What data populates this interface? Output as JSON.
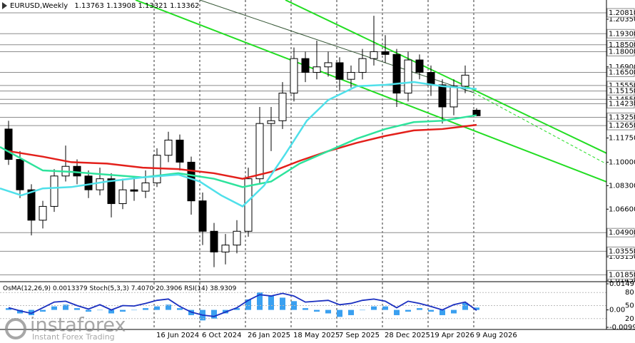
{
  "chart_data": {
    "type": "candlestick",
    "title": "EURUSD,Weekly",
    "x": [
      3,
      7,
      11,
      15,
      19,
      23,
      27,
      31,
      35,
      39,
      43,
      47,
      51,
      55,
      59,
      63,
      67,
      71,
      75,
      79,
      83,
      87,
      91,
      95,
      99,
      103,
      107,
      111,
      115,
      119,
      123,
      127,
      131,
      135,
      139,
      143,
      147,
      151,
      155,
      159,
      163,
      167
    ],
    "open": [
      1.124,
      1.102,
      1.08,
      1.058,
      1.068,
      1.09,
      1.097,
      1.09,
      1.08,
      1.088,
      1.07,
      1.08,
      1.079,
      1.085,
      1.105,
      1.116,
      1.1,
      1.072,
      1.05,
      1.035,
      1.04,
      1.05,
      1.088,
      1.128,
      1.13,
      1.15,
      1.175,
      1.165,
      1.169,
      1.172,
      1.16,
      1.165,
      1.175,
      1.18,
      1.178,
      1.15,
      1.174,
      1.165,
      1.156,
      1.14,
      1.155,
      1.13763
    ],
    "high": [
      1.13,
      1.108,
      1.084,
      1.072,
      1.095,
      1.112,
      1.102,
      1.094,
      1.096,
      1.092,
      1.088,
      1.09,
      1.094,
      1.11,
      1.122,
      1.12,
      1.104,
      1.078,
      1.056,
      1.048,
      1.058,
      1.096,
      1.14,
      1.14,
      1.158,
      1.183,
      1.18,
      1.188,
      1.18,
      1.176,
      1.17,
      1.182,
      1.206,
      1.192,
      1.182,
      1.18,
      1.178,
      1.17,
      1.16,
      1.16,
      1.17,
      1.13908
    ],
    "low": [
      1.098,
      1.074,
      1.047,
      1.052,
      1.064,
      1.086,
      1.084,
      1.074,
      1.076,
      1.06,
      1.066,
      1.072,
      1.074,
      1.082,
      1.1,
      1.094,
      1.062,
      1.04,
      1.024,
      1.026,
      1.034,
      1.046,
      1.084,
      1.108,
      1.124,
      1.144,
      1.158,
      1.16,
      1.162,
      1.152,
      1.154,
      1.16,
      1.17,
      1.172,
      1.14,
      1.144,
      1.16,
      1.148,
      1.128,
      1.134,
      1.15,
      1.13321
    ],
    "close": [
      1.102,
      1.08,
      1.058,
      1.068,
      1.09,
      1.097,
      1.09,
      1.08,
      1.088,
      1.07,
      1.08,
      1.079,
      1.085,
      1.105,
      1.116,
      1.1,
      1.072,
      1.05,
      1.035,
      1.04,
      1.05,
      1.088,
      1.128,
      1.13,
      1.15,
      1.175,
      1.165,
      1.169,
      1.172,
      1.16,
      1.165,
      1.175,
      1.18,
      1.178,
      1.15,
      1.174,
      1.165,
      1.156,
      1.14,
      1.155,
      1.163,
      1.13362
    ],
    "up_color": "#ffffff",
    "down_color": "#000000",
    "xlim": [
      0,
      212.5
    ],
    "xticks": [
      {
        "value": 54,
        "label": "16 Jun 2024"
      },
      {
        "value": 70,
        "label": "6 Oct 2024"
      },
      {
        "value": 86,
        "label": "26 Jan 2025"
      },
      {
        "value": 102,
        "label": "18 May 2025"
      },
      {
        "value": 118,
        "label": "7 Sep 2025"
      },
      {
        "value": 134,
        "label": "28 Dec 2025"
      },
      {
        "value": 150,
        "label": "19 Apr 2026"
      },
      {
        "value": 166,
        "label": "9 Aug 2026"
      }
    ],
    "ylim": [
      1.0135,
      1.2174
    ],
    "yticks": [
      {
        "value": 1.2035,
        "label": "1.20350"
      },
      {
        "value": 1.169,
        "label": "1.16900"
      },
      {
        "value": 1.1175,
        "label": "1.11750"
      },
      {
        "value": 1.1,
        "label": "1.10000"
      },
      {
        "value": 1.083,
        "label": "1.08300"
      },
      {
        "value": 1.066,
        "label": "1.06600"
      },
      {
        "value": 1.0315,
        "label": "1.03150"
      },
      {
        "value": 1.0145,
        "label": "1.01450"
      }
    ],
    "levels": [
      {
        "value": 1.2081,
        "label": "1.20810"
      },
      {
        "value": 1.193,
        "label": "1.19300"
      },
      {
        "value": 1.185,
        "label": "1.18500"
      },
      {
        "value": 1.18,
        "label": "1.18000"
      },
      {
        "value": 1.165,
        "label": "1.16500"
      },
      {
        "value": 1.1555,
        "label": "1.15550"
      },
      {
        "value": 1.1515,
        "label": "1.15150"
      },
      {
        "value": 1.1455,
        "label": "1.14550"
      },
      {
        "value": 1.1423,
        "label": "1.14230"
      },
      {
        "value": 1.1325,
        "label": "1.13250"
      },
      {
        "value": 1.1265,
        "label": "1.12650"
      },
      {
        "value": 1.049,
        "label": "1.04900"
      },
      {
        "value": 1.0355,
        "label": "1.03550"
      },
      {
        "value": 1.0185,
        "label": "1.01850"
      }
    ],
    "moving_averages": [
      {
        "color": "#e3201b",
        "x": [
          3,
          15,
          25,
          37.5,
          50,
          62.5,
          75,
          85,
          95,
          105,
          115,
          125,
          135,
          145,
          155,
          167
        ],
        "values": [
          1.108,
          1.104,
          1.1,
          1.099,
          1.096,
          1.095,
          1.092,
          1.088,
          1.093,
          1.101,
          1.108,
          1.114,
          1.119,
          1.123,
          1.124,
          1.127
        ]
      },
      {
        "color": "#2ee39c",
        "x": [
          0,
          15,
          25,
          37.5,
          50,
          62.5,
          75,
          85,
          95,
          105,
          115,
          125,
          135,
          145,
          155,
          167
        ],
        "values": [
          1.111,
          1.094,
          1.093,
          1.091,
          1.089,
          1.092,
          1.088,
          1.082,
          1.086,
          1.099,
          1.108,
          1.117,
          1.124,
          1.129,
          1.13,
          1.134
        ]
      },
      {
        "color": "#4fe0ea",
        "x": [
          0,
          7.5,
          15,
          25,
          37.5,
          50,
          62.5,
          70,
          77.5,
          85,
          92.5,
          100,
          107.5,
          115,
          125,
          135,
          145,
          155,
          167
        ],
        "values": [
          1.081,
          1.076,
          1.081,
          1.082,
          1.086,
          1.089,
          1.091,
          1.086,
          1.076,
          1.068,
          1.083,
          1.106,
          1.13,
          1.145,
          1.155,
          1.156,
          1.158,
          1.155,
          1.153
        ]
      }
    ],
    "trendlines": [
      {
        "color": "#22dd22",
        "x": [
          100,
          212.5
        ],
        "y": [
          1.2174,
          1.1065
        ]
      },
      {
        "color": "#22dd22",
        "x": [
          47.5,
          212.5
        ],
        "y": [
          1.2174,
          1.0858
        ]
      },
      {
        "color": "#335533",
        "x": [
          70,
          166
        ],
        "y": [
          1.2174,
          1.1503
        ]
      },
      {
        "color": "#22dd22",
        "dashed": true,
        "x": [
          166,
          212.5
        ],
        "y": [
          1.1503,
          1.0987
        ]
      }
    ],
    "osma": {
      "label": "OsMA(12,26,9)",
      "color": "#3aa0f0",
      "values": [
        0.001,
        -0.002,
        -0.003,
        -0.001,
        0.002,
        0.003,
        0.001,
        -0.001,
        0.0,
        -0.002,
        -0.001,
        0.0,
        0.001,
        0.002,
        0.003,
        0.001,
        -0.003,
        -0.006,
        -0.005,
        -0.002,
        0.001,
        0.006,
        0.01,
        0.008,
        0.007,
        0.005,
        0.001,
        -0.001,
        -0.002,
        -0.004,
        -0.003,
        0.0,
        0.002,
        0.002,
        -0.003,
        -0.001,
        0.001,
        -0.001,
        -0.003,
        -0.002,
        0.004,
        0.0013379
      ],
      "ylim": [
        -0.00995,
        0.01491
      ],
      "yticks": [
        0.01491,
        {
          "value": 0,
          "label": "0.00"
        },
        -0.00995
      ]
    },
    "stoch": {
      "label": "Stoch(5,3,3)",
      "values": [
        7.407,
        20.3906
      ],
      "value_labels": [
        "7.4070",
        "20.3906"
      ]
    },
    "rsi": {
      "label": "RSI(14)",
      "color": "#1a2fc0",
      "values": [
        45,
        38,
        32,
        45,
        58,
        60,
        50,
        42,
        52,
        40,
        50,
        49,
        55,
        62,
        65,
        48,
        35,
        28,
        25,
        35,
        45,
        62,
        75,
        72,
        78,
        72,
        58,
        60,
        62,
        52,
        55,
        62,
        65,
        60,
        45,
        60,
        55,
        48,
        40,
        52,
        58,
        38.9309
      ],
      "ylim": [
        0,
        100
      ],
      "yticks": [
        80,
        50,
        20
      ]
    }
  },
  "watermark": {
    "brand": "instaforex",
    "tagline": "Instant Forex Trading"
  }
}
